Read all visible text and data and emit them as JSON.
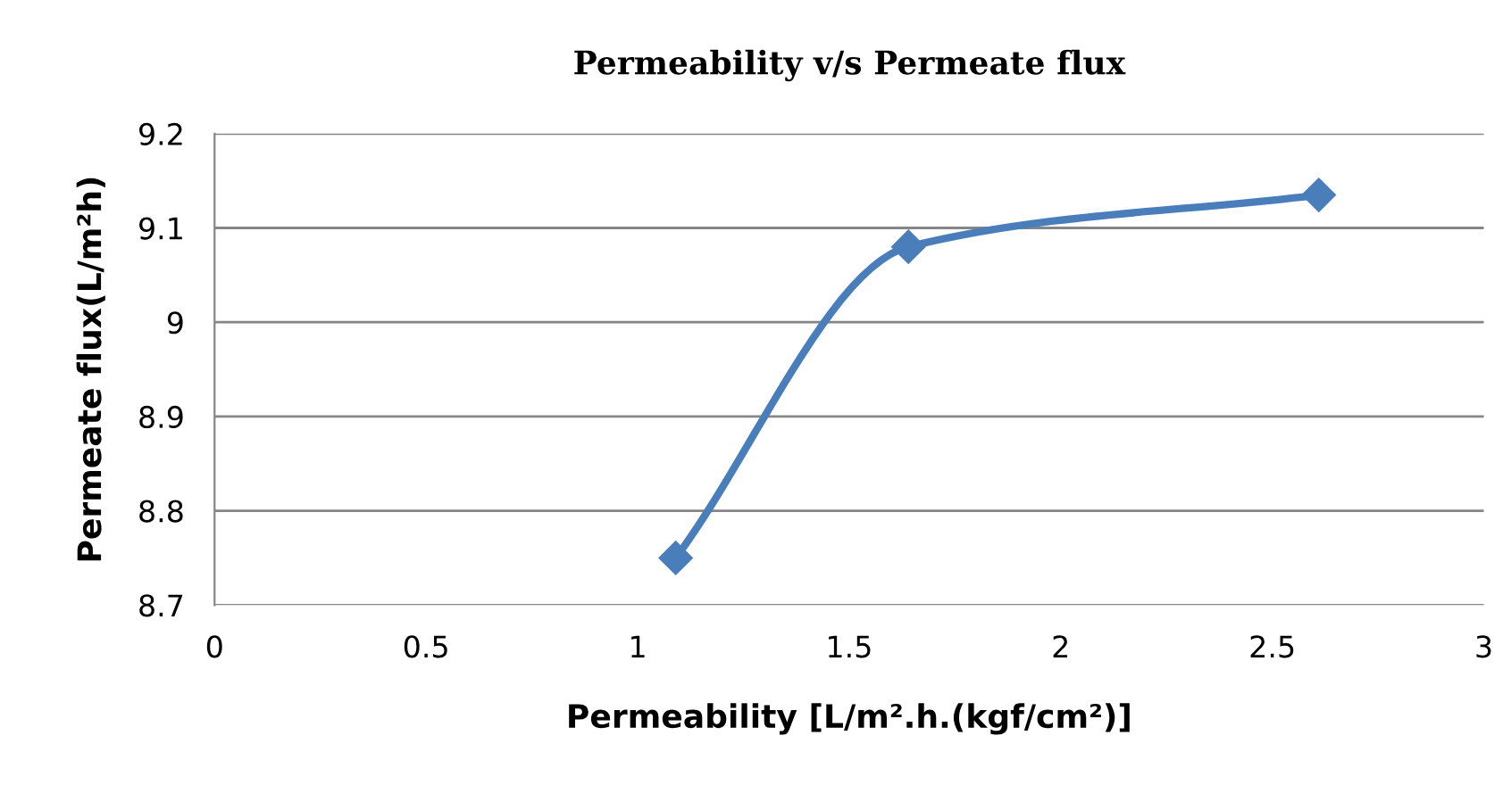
{
  "chart_data": {
    "type": "line",
    "title": "Permeability v/s Permeate flux",
    "xlabel": "Permeability [L/m².h.(kgf/cm²)]",
    "ylabel": "Permeate flux(L/m²h)",
    "x": [
      1.09,
      1.64,
      2.61
    ],
    "series": [
      {
        "color": "#4a7ebb",
        "values": [
          8.75,
          9.08,
          9.135
        ]
      }
    ],
    "xlim": [
      0,
      3
    ],
    "xticks": [
      0,
      0.5,
      1,
      1.5,
      2,
      2.5,
      3
    ],
    "ylim": [
      8.7,
      9.2
    ],
    "yticks": [
      8.7,
      8.8,
      8.9,
      9,
      9.1,
      9.2
    ],
    "grid": "y",
    "marker": "diamond",
    "line_style": "solid",
    "legend": false
  }
}
